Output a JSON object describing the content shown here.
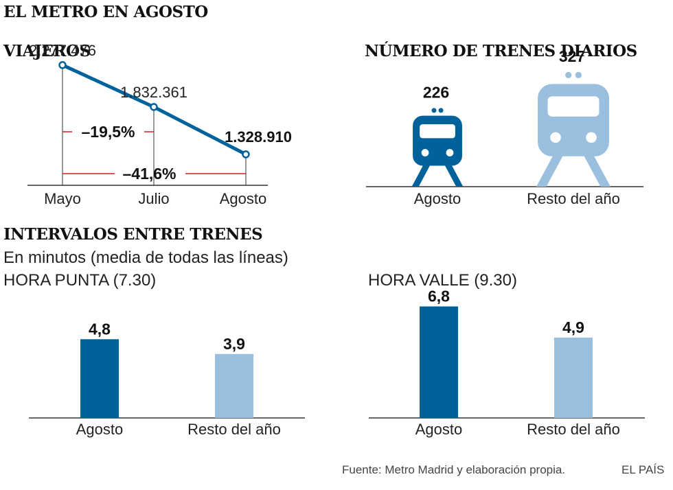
{
  "title": "EL METRO EN AGOSTO",
  "colors": {
    "dark": "#00629b",
    "light": "#9bbfdf",
    "axis": "#333333",
    "red": "#cc1f1f",
    "text": "#222222"
  },
  "viajeros": {
    "heading": "VIAJEROS",
    "chart_data": {
      "type": "line",
      "categories": [
        "Mayo",
        "Julio",
        "Agosto"
      ],
      "values": [
        2277476,
        1832361,
        1328910
      ],
      "value_labels": [
        "2.277.476",
        "1.832.361",
        "1.328.910"
      ],
      "ylim": [
        1000000,
        2400000
      ],
      "annotations": [
        "–19,5%",
        "–41,6%"
      ]
    }
  },
  "trenes": {
    "heading": "NÚMERO DE TRENES DIARIOS",
    "chart_data": {
      "type": "bar",
      "categories": [
        "Agosto",
        "Resto del año"
      ],
      "values": [
        226,
        327
      ],
      "value_labels": [
        "226",
        "327"
      ],
      "icon": "train-icon"
    }
  },
  "intervalos": {
    "heading": "INTERVALOS ENTRE TRENES",
    "subtitle": "En minutos (media de todas las líneas)",
    "punta": {
      "label": "HORA PUNTA (7.30)",
      "chart_data": {
        "type": "bar",
        "categories": [
          "Agosto",
          "Resto del año"
        ],
        "values": [
          4.8,
          3.9
        ],
        "value_labels": [
          "4,8",
          "3,9"
        ],
        "ylim": [
          0,
          7.7
        ]
      }
    },
    "valle": {
      "label": "HORA VALLE (9.30)",
      "chart_data": {
        "type": "bar",
        "categories": [
          "Agosto",
          "Resto del año"
        ],
        "values": [
          6.8,
          4.9
        ],
        "value_labels": [
          "6,8",
          "4,9"
        ],
        "ylim": [
          0,
          7.7
        ]
      }
    }
  },
  "footer": {
    "source": "Fuente:  Metro Madrid y elaboración propia.",
    "brand": "EL PAÍS"
  }
}
